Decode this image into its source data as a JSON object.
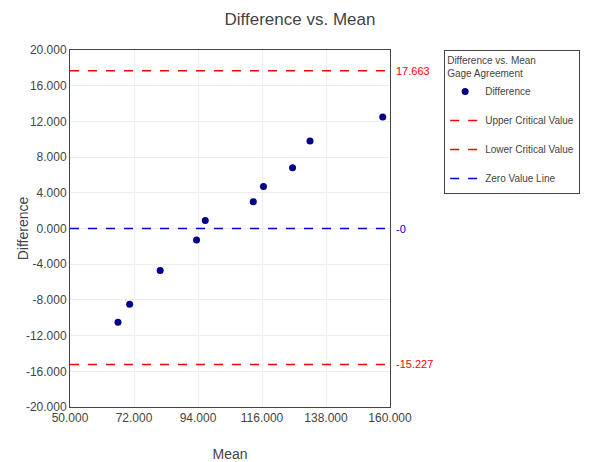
{
  "chart_data": {
    "type": "scatter",
    "title": "Difference vs. Mean",
    "xlabel": "Mean",
    "ylabel": "Difference",
    "xlim": [
      50.0,
      160.0
    ],
    "ylim": [
      -20.0,
      20.0
    ],
    "xticks": [
      {
        "value": 50.0,
        "label": "50.000"
      },
      {
        "value": 72.0,
        "label": "72.000"
      },
      {
        "value": 94.0,
        "label": "94.000"
      },
      {
        "value": 116.0,
        "label": "116.000"
      },
      {
        "value": 138.0,
        "label": "138.000"
      },
      {
        "value": 160.0,
        "label": "160.000"
      }
    ],
    "yticks": [
      {
        "value": -20.0,
        "label": "-20.000"
      },
      {
        "value": -16.0,
        "label": "-16.000"
      },
      {
        "value": -12.0,
        "label": "-12.000"
      },
      {
        "value": -8.0,
        "label": "-8.000"
      },
      {
        "value": -4.0,
        "label": "-4.000"
      },
      {
        "value": 0.0,
        "label": "0.000"
      },
      {
        "value": 4.0,
        "label": "4.000"
      },
      {
        "value": 8.0,
        "label": "8.000"
      },
      {
        "value": 12.0,
        "label": "12.000"
      },
      {
        "value": 16.0,
        "label": "16.000"
      },
      {
        "value": 20.0,
        "label": "20.000"
      }
    ],
    "grid": true,
    "legend": "right",
    "legend_title": [
      "Difference vs. Mean",
      "Gage Agreement"
    ],
    "series": [
      {
        "name": "Difference",
        "type": "scatter",
        "color": "#00008B",
        "marker": "circle",
        "x": [
          66.5,
          70.5,
          81.0,
          93.5,
          96.5,
          113.0,
          116.5,
          126.5,
          132.5,
          157.5
        ],
        "values": [
          -10.5,
          -8.5,
          -4.7,
          -1.3,
          0.9,
          3.0,
          4.7,
          6.8,
          9.8,
          12.5
        ]
      },
      {
        "name": "Upper Critical Value",
        "type": "hline",
        "color": "#FF0000",
        "line_style": "dashed",
        "values": [
          17.663
        ],
        "data_labels": true
      },
      {
        "name": "Lower Critical Value",
        "type": "hline",
        "color": "#FF0000",
        "line_style": "dashed",
        "values": [
          -15.227
        ],
        "data_labels": true
      },
      {
        "name": "Zero Value Line",
        "type": "hline",
        "color": "#0000CD",
        "line_style": "dashed",
        "values": [
          0
        ],
        "value_labels": [
          "-0"
        ],
        "data_labels": true
      }
    ]
  }
}
